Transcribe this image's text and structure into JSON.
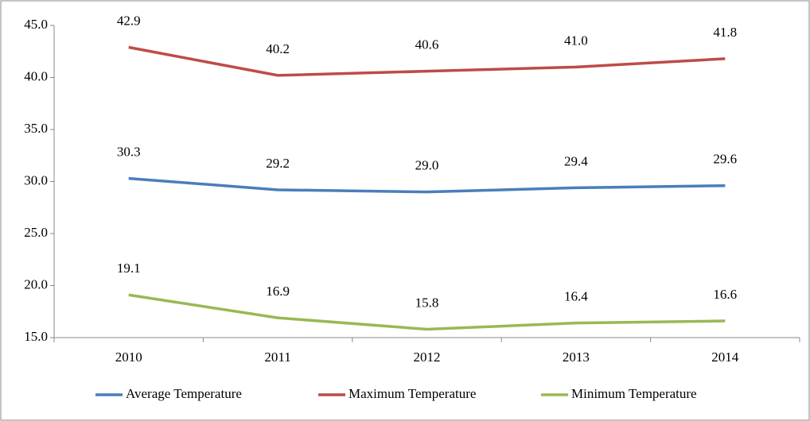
{
  "chart_data": {
    "type": "line",
    "categories": [
      "2010",
      "2011",
      "2012",
      "2013",
      "2014"
    ],
    "series": [
      {
        "name": "Average Temperature",
        "color": "#4a7ebb",
        "values": [
          30.3,
          29.2,
          29.0,
          29.4,
          29.6
        ],
        "value_labels": [
          "30.3",
          "29.2",
          "29.0",
          "29.4",
          "29.6"
        ]
      },
      {
        "name": "Maximum Temperature",
        "color": "#be4b48",
        "values": [
          42.9,
          40.2,
          40.6,
          41.0,
          41.8
        ],
        "value_labels": [
          "42.9",
          "40.2",
          "40.6",
          "41.0",
          "41.8"
        ]
      },
      {
        "name": "Minimum Temperature",
        "color": "#98b954",
        "values": [
          19.1,
          16.9,
          15.8,
          16.4,
          16.6
        ],
        "value_labels": [
          "19.1",
          "16.9",
          "15.8",
          "16.4",
          "16.6"
        ]
      }
    ],
    "ylim": [
      15,
      45
    ],
    "yticks": [
      {
        "value": 15,
        "label": "15.0"
      },
      {
        "value": 20,
        "label": "20.0"
      },
      {
        "value": 25,
        "label": "25.0"
      },
      {
        "value": 30,
        "label": "30.0"
      },
      {
        "value": 35,
        "label": "35.0"
      },
      {
        "value": 40,
        "label": "40.0"
      },
      {
        "value": 45,
        "label": "45.0"
      }
    ],
    "legend": "bottom"
  }
}
